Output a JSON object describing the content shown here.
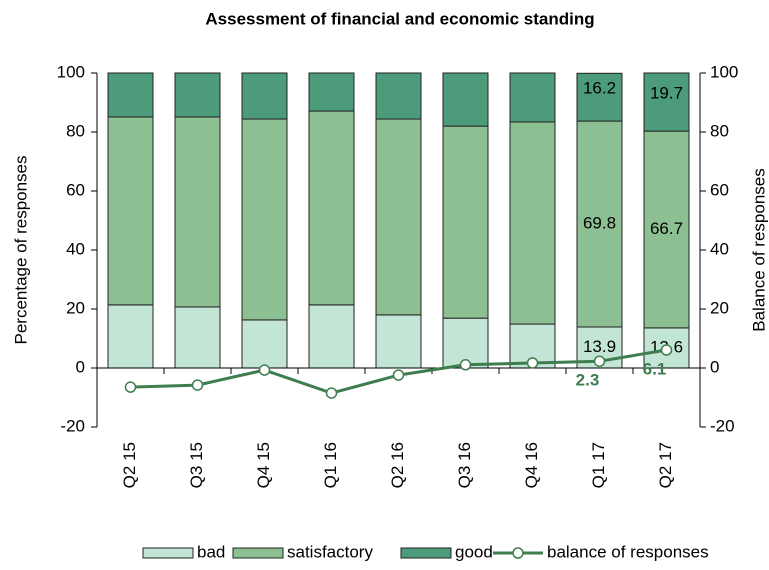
{
  "chart_data": {
    "type": "bar",
    "title": "Assessment  of financial and economic standing",
    "y_label": "Percentage of responses",
    "y2_label": "Balance of responses",
    "categories": [
      "Q2 15",
      "Q3 15",
      "Q4 15",
      "Q1 16",
      "Q2 16",
      "Q3 16",
      "Q4 16",
      "Q1 17",
      "Q2 17"
    ],
    "stacked": true,
    "series": [
      {
        "name": "bad",
        "type": "bar",
        "color": "#c2e5d6",
        "values": [
          21.4,
          20.7,
          16.3,
          21.4,
          18.0,
          16.9,
          14.9,
          13.9,
          13.6
        ],
        "value_labels": [
          null,
          null,
          null,
          null,
          null,
          null,
          null,
          "13.9",
          "13.6"
        ]
      },
      {
        "name": "satisfactory",
        "type": "bar",
        "color": "#8cc092",
        "values": [
          63.7,
          64.4,
          68.1,
          65.7,
          66.4,
          65.1,
          68.5,
          69.8,
          66.7
        ],
        "value_labels": [
          null,
          null,
          null,
          null,
          null,
          null,
          null,
          "69.8",
          "66.7"
        ]
      },
      {
        "name": "good",
        "type": "bar",
        "color": "#4c9c7c",
        "values": [
          14.9,
          14.9,
          15.6,
          12.9,
          15.6,
          18.0,
          16.6,
          16.2,
          19.7
        ],
        "value_labels": [
          null,
          null,
          null,
          null,
          null,
          null,
          null,
          "16.2",
          "19.7"
        ]
      },
      {
        "name": "balance of responses",
        "type": "line",
        "axis": "y2",
        "color": "#3f7d4f",
        "values": [
          -6.5,
          -5.8,
          -0.7,
          -8.5,
          -2.4,
          1.1,
          1.7,
          2.3,
          6.1
        ],
        "value_labels": [
          null,
          null,
          null,
          null,
          null,
          null,
          null,
          "2.3",
          "6.1"
        ]
      }
    ],
    "ylim": [
      -20,
      100
    ],
    "yticks": [
      -20,
      0,
      20,
      40,
      60,
      80,
      100
    ],
    "y2lim": [
      -20,
      100
    ],
    "y2ticks": [
      -20,
      0,
      20,
      40,
      60,
      80,
      100
    ]
  }
}
